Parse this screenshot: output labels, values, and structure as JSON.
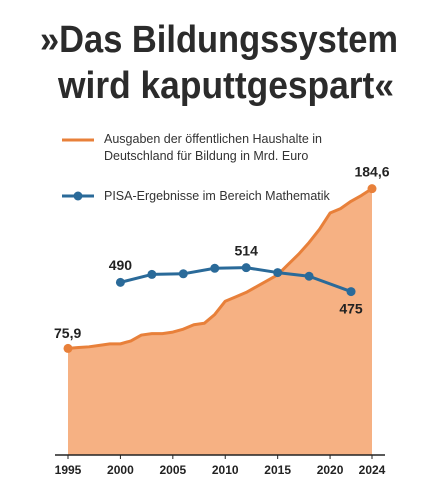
{
  "chart_data": {
    "type": "line",
    "title": [
      "»Das Bildungssystem",
      "wird kaputtgespart«"
    ],
    "x": [
      1995,
      1996,
      1997,
      1998,
      1999,
      2000,
      2001,
      2002,
      2003,
      2004,
      2005,
      2006,
      2007,
      2008,
      2009,
      2010,
      2011,
      2012,
      2013,
      2014,
      2015,
      2016,
      2017,
      2018,
      2019,
      2020,
      2021,
      2022,
      2023,
      2024
    ],
    "series": [
      {
        "name": "Ausgaben der öffentlichen Haushalte in Deutschland für Bildung in Mrd. Euro",
        "color": "#e8803a",
        "fill": "#f6b183",
        "x": [
          1995,
          1996,
          1997,
          1998,
          1999,
          2000,
          2001,
          2002,
          2003,
          2004,
          2005,
          2006,
          2007,
          2008,
          2009,
          2010,
          2011,
          2012,
          2013,
          2014,
          2015,
          2016,
          2017,
          2018,
          2019,
          2020,
          2021,
          2022,
          2023,
          2024
        ],
        "values": [
          75.9,
          76.5,
          77,
          78,
          79,
          79,
          81,
          85,
          86,
          86,
          87,
          89,
          92,
          93,
          99,
          108,
          111,
          114,
          118,
          122,
          126,
          133,
          140,
          148,
          157,
          168,
          171,
          176,
          180,
          184.6
        ],
        "value_labels": [
          "75,9",
          null,
          null,
          null,
          null,
          null,
          null,
          null,
          null,
          null,
          null,
          null,
          null,
          null,
          null,
          null,
          null,
          null,
          null,
          null,
          null,
          null,
          null,
          null,
          null,
          null,
          null,
          null,
          null,
          "184,6"
        ]
      },
      {
        "name": "PISA-Ergebnisse im Bereich Mathematik",
        "color": "#2a6a99",
        "axis": "y2",
        "x": [
          2000,
          2003,
          2006,
          2009,
          2012,
          2015,
          2018,
          2022
        ],
        "values": [
          490,
          503,
          504,
          513,
          514,
          506,
          500,
          475
        ]
      }
    ],
    "xlim": [
      1995,
      2024
    ],
    "xticks": [
      1995,
      2000,
      2005,
      2010,
      2015,
      2020,
      2024
    ],
    "ylim": [
      0,
      200
    ],
    "y2lim": [
      200,
      680
    ]
  }
}
